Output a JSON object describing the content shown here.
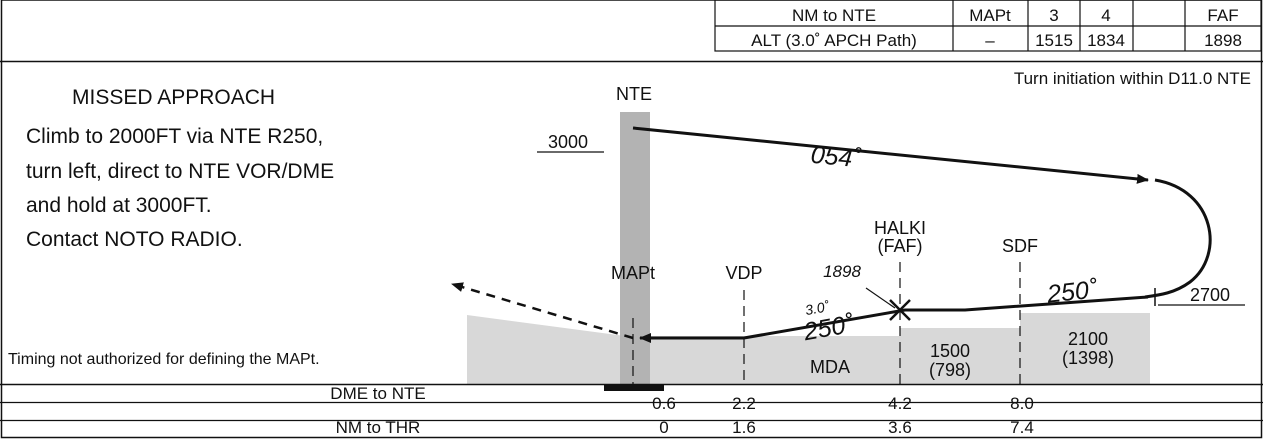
{
  "alt_table": {
    "headers": [
      "NM to NTE",
      "MAPt",
      "3",
      "4",
      "FAF"
    ],
    "row": [
      "ALT (3.0˚ APCH Path)",
      "–",
      "1515",
      "1834",
      "1898"
    ]
  },
  "missed_approach": {
    "title": "MISSED APPROACH",
    "lines": [
      "Climb to 2000FT via NTE R250,",
      "turn left, direct to NTE VOR/DME",
      "and hold at 3000FT.",
      "Contact NOTO RADIO."
    ]
  },
  "turn_note": "Turn initiation within D11.0 NTE",
  "timing_note": "Timing not authorized for defining the MAPt.",
  "fixes": {
    "nte": "NTE",
    "mapt": "MAPt",
    "vdp": "VDP",
    "halki_name": "HALKI",
    "halki_faf": "(FAF)",
    "sdf": "SDF"
  },
  "altitudes": {
    "hold_alt": "3000",
    "turn_alt": "2700",
    "faf_alt": "1898",
    "sdf_min": "2100",
    "sdf_min_hat": "(1398)",
    "faf_min": "1500",
    "faf_min_hat": "(798)",
    "mda": "MDA"
  },
  "courses": {
    "outbound": "054˚",
    "inbound_upper": "250˚",
    "inbound_lower": "250˚",
    "glide_angle": "3.0˚"
  },
  "distance_table": {
    "dme_label": "DME to NTE",
    "dme_values": [
      "0.6",
      "2.2",
      "4.2",
      "8.0"
    ],
    "thr_label": "NM to THR",
    "thr_values": [
      "0",
      "1.6",
      "3.6",
      "7.4"
    ]
  },
  "colors": {
    "terrain": "#d8d8d8",
    "nte_bar": "#b3b3b3",
    "ink": "#111111"
  }
}
